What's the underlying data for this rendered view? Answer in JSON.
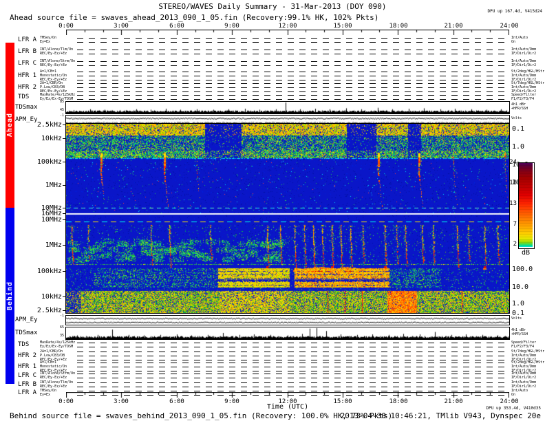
{
  "header": {
    "title": "STEREO/WAVES Daily Summary - 31-Mar-2013 (DOY 090)",
    "ahead_source": "Ahead source file = swaves_ahead_2013_090_1_05.fin (Recovery:99.1% HK, 102% Pkts)",
    "dpu_status": "DPU up 167.4d, V415d24"
  },
  "footer": {
    "behind_source": "Behind source file = swaves_behind_2013_090_1_05.fin (Recovery: 100.0% HK, 73% Pkts)",
    "generated": "2013-04-30 10:46:21, TMlib V943, Dynspec 20e",
    "dpu_status": "DPU up 353.4d, V410d35"
  },
  "spacecraft_bars": {
    "ahead": {
      "label": "Ahead",
      "color": "#ff0000"
    },
    "behind": {
      "label": "Behind",
      "color": "#0000ee"
    }
  },
  "time_axis": {
    "labels": [
      "0:00",
      "3:00",
      "6:00",
      "9:00",
      "12:00",
      "15:00",
      "18:00",
      "21:00",
      "24:00"
    ],
    "title": "Time (UTC)"
  },
  "receivers_ahead": [
    {
      "label": "LFR A",
      "left_note": "TMSey/On\nEy=Ex",
      "right_note": "Int/Auto\nOn"
    },
    {
      "label": "LFR B",
      "left_note": "INT/Alone/Tlm/On\nREC/Ey-Ez/+Ez",
      "right_note": "Int/Auto/Dmm\nIF/Dir1/Dir2"
    },
    {
      "label": "LFR C",
      "left_note": "INT/Alone/Strm/On\nREC/Ey-Ez/+Ez",
      "right_note": "Int/Auto/Dmm\nIF/Dir1/Dir2"
    },
    {
      "label": "HFR 1",
      "left_note": "A=1/CB=1\nMonostatic/On\nREC/Ex-Ey/+Ez",
      "right_note": "St/2deg/HGL/HStr\nInt/Auto/Dmm\nIF/Dir1/Dir2"
    },
    {
      "label": "HFR 2",
      "left_note": "2A=1/CBR/On\nP.Low/CB3/DB\nREC/Ex-Ey/+Ez",
      "right_note": "St/7deg/HGL/HStr\nInt/Auto/Dmm\nIF/Dir1/Dir2"
    },
    {
      "label": "TDS",
      "left_note": "MaxRate/4s/125kHz\nEy/Ez/Ex-Ey/TDSM",
      "right_note": "Speed/Filter\nF1/F2/F3/F4"
    }
  ],
  "receivers_behind": [
    {
      "label": "TDS",
      "left_note": "MaxRate/4s/125kHz\nEy/Ez/Ex-Ey/TDSM",
      "right_note": "Speed/Filter\nF1/F2/F3/F4"
    },
    {
      "label": "HFR 2",
      "left_note": "2A=1/CBR/On\nP.Low/CB3/DB\nREC/Ex-Ey/+Ez",
      "right_note": "St/7deg/HGL/HStr\nInt/Auto/Dmm\nIF/Dir1/Dir2"
    },
    {
      "label": "HFR 1",
      "left_note": "A=1/CB=1\nMonostatic/On\nREC/Ex-Ey/+Ez",
      "right_note": "St/2deg/HGL/HStr\nInt/Auto/Dmm\nIF/Dir1/Dir2"
    },
    {
      "label": "LFR C",
      "left_note": "INT/Alone/Strm/On\nREC/Ey-Ez/+Ez",
      "right_note": "Int/Auto/Dmm\nIF/Dir1/Dir2"
    },
    {
      "label": "LFR B",
      "left_note": "INT/Alone/Tlm/On\nREC/Ey-Ez/+Ez",
      "right_note": "Int/Auto/Dmm\nIF/Dir1/Dir2"
    },
    {
      "label": "LFR A",
      "left_note": "TMSey/On\nEy=Ex",
      "right_note": "Int/Auto\nOn"
    }
  ],
  "tdsmax": {
    "label": "TDSmax",
    "ahead_ticks": [
      "85",
      "45"
    ],
    "behind_ticks": [
      "65",
      "35"
    ],
    "right_note": "4h1 dBr\n+HFR/SSH"
  },
  "apm": {
    "label": "APM_Ey",
    "tick": "-1",
    "right_note": "Volts"
  },
  "freq_axis": {
    "ahead": [
      "2.5kHz",
      "10kHz",
      "100kHz",
      "1MHz",
      "10MHz"
    ],
    "junction": "16MHz",
    "behind": [
      "10MHz",
      "1MHz",
      "100kHz",
      "10kHz",
      "2.5kHz"
    ],
    "right_ahead": [
      "0.1",
      "1.0",
      "10.0",
      "100.0"
    ],
    "right_behind": [
      "100.0",
      "10.0",
      "1.0",
      "0.1"
    ]
  },
  "colorbar": {
    "ticks": [
      "24",
      "18",
      "13",
      "7",
      "2"
    ],
    "label": "dB"
  },
  "chart_data": {
    "figure_title": "STEREO/WAVES Daily Summary - 31-Mar-2013 (DOY 090)",
    "x_axis": {
      "label": "Time (UTC)",
      "range_hours": [
        0,
        24
      ],
      "major_tick_hours": 3,
      "minor_tick_hours": 1
    },
    "colorbar": {
      "label": "dB",
      "ticks": [
        2,
        7,
        13,
        18,
        24
      ],
      "range": [
        2,
        24
      ]
    },
    "panels": [
      {
        "name": "ahead_spectrogram",
        "type": "heatmap",
        "spacecraft": "STEREO Ahead",
        "y_ticks": [
          "2.5kHz",
          "10kHz",
          "100kHz",
          "1MHz",
          "10MHz"
        ],
        "y_range": "2.5 kHz (top) to 16 MHz (bottom), log scale",
        "right_ticks": [
          0.1,
          1.0,
          10.0,
          100.0
        ],
        "quiet_gaps_hours": [
          [
            7.5,
            9.5
          ],
          [
            15.2,
            16.8
          ],
          [
            18.5,
            19.2
          ]
        ],
        "type_iii_bursts": [
          {
            "t": 1.9,
            "s": 1
          },
          {
            "t": 5.35,
            "s": 1
          },
          {
            "t": 7.1,
            "s": 0.35
          },
          {
            "t": 16.95,
            "s": 1
          },
          {
            "t": 19.15,
            "s": 0.95
          },
          {
            "t": 21.0,
            "s": 0.5
          },
          {
            "t": 23.8,
            "s": 0.55
          }
        ],
        "description": "Continuous green/yellow emission 2.5-100 kHz with quiet gaps; type III radio bursts drifting from 16 MHz to ~100 kHz"
      },
      {
        "name": "behind_spectrogram",
        "type": "heatmap",
        "spacecraft": "STEREO Behind",
        "y_ticks": [
          "10MHz",
          "1MHz",
          "100kHz",
          "10kHz",
          "2.5kHz"
        ],
        "y_range": "16 MHz (top) to 2.5 kHz (bottom), log scale",
        "right_ticks": [
          100.0,
          10.0,
          1.0,
          0.1
        ],
        "type_iii_bursts": [
          {
            "t": 0.3,
            "s": 0.5
          },
          {
            "t": 1.2,
            "s": 0.4
          },
          {
            "t": 4.6,
            "s": 0.6
          },
          {
            "t": 5.6,
            "s": 0.7
          },
          {
            "t": 7.8,
            "s": 0.3
          },
          {
            "t": 10.9,
            "s": 0.8
          },
          {
            "t": 11.6,
            "s": 0.6
          },
          {
            "t": 12.4,
            "s": 0.9
          },
          {
            "t": 12.9,
            "s": 0.7
          },
          {
            "t": 13.4,
            "s": 1
          },
          {
            "t": 13.9,
            "s": 0.9
          },
          {
            "t": 14.4,
            "s": 0.8
          },
          {
            "t": 14.9,
            "s": 1
          },
          {
            "t": 15.4,
            "s": 0.7
          },
          {
            "t": 16.1,
            "s": 0.6
          },
          {
            "t": 17.3,
            "s": 0.8
          },
          {
            "t": 17.9,
            "s": 0.5
          },
          {
            "t": 18.4,
            "s": 0.7
          },
          {
            "t": 19.3,
            "s": 0.5
          },
          {
            "t": 19.9,
            "s": 0.6
          },
          {
            "t": 21.2,
            "s": 0.7
          },
          {
            "t": 21.8,
            "s": 0.4
          },
          {
            "t": 22.7,
            "s": 0.8
          },
          {
            "t": 23.4,
            "s": 0.6
          }
        ],
        "intense_patches": [
          {
            "t": 13.75,
            "len": 1.8
          },
          {
            "t": 15.25,
            "len": 1.3
          }
        ],
        "red_lines_hours": [
          14.2,
          15.1,
          16.05,
          21.45
        ],
        "bands": {
          "100kHz": "bright yellow 8:15-12:05, orange 12:20-17:30, green patches 1:30-8:15, faint after 20:20",
          "low_freq": "continuous 2.5-10 kHz speckle all day, bright orange column 17:25-19:00"
        }
      }
    ],
    "tdsmax_ahead": {
      "type": "line",
      "y_ticks": [
        45,
        85
      ],
      "spikes": [
        [
          0.4,
          0.2
        ],
        [
          1.3,
          0.3
        ],
        [
          2.1,
          0.25
        ],
        [
          2.9,
          0.2
        ],
        [
          3.8,
          0.3
        ],
        [
          4.6,
          0.25
        ],
        [
          5.4,
          0.35
        ],
        [
          6.2,
          0.25
        ],
        [
          7.1,
          0.3
        ],
        [
          8.0,
          0.25
        ],
        [
          8.8,
          0.3
        ],
        [
          9.7,
          0.35
        ],
        [
          10.5,
          0.25
        ],
        [
          11.4,
          0.3
        ],
        [
          11.9,
          1.0
        ],
        [
          12.7,
          0.3
        ],
        [
          13.5,
          0.35
        ],
        [
          14.3,
          0.3
        ],
        [
          15.2,
          0.4
        ],
        [
          16.0,
          0.3
        ],
        [
          16.9,
          0.45
        ],
        [
          17.7,
          0.3
        ],
        [
          18.6,
          0.35
        ],
        [
          19.4,
          0.4
        ],
        [
          20.3,
          0.3
        ],
        [
          21.1,
          0.35
        ],
        [
          22.0,
          0.3
        ],
        [
          22.8,
          0.25
        ],
        [
          23.6,
          0.3
        ]
      ]
    },
    "tdsmax_behind": {
      "type": "line",
      "y_ticks": [
        35,
        65
      ],
      "spikes": [
        [
          0.6,
          0.25
        ],
        [
          1.7,
          0.3
        ],
        [
          2.5,
          0.85
        ],
        [
          3.4,
          0.3
        ],
        [
          4.2,
          0.25
        ],
        [
          5.1,
          0.3
        ],
        [
          6.0,
          0.35
        ],
        [
          6.8,
          0.25
        ],
        [
          7.7,
          0.3
        ],
        [
          8.5,
          0.5
        ],
        [
          9.4,
          0.3
        ],
        [
          10.2,
          0.35
        ],
        [
          11.1,
          0.3
        ],
        [
          12.0,
          0.25
        ],
        [
          12.8,
          0.4
        ],
        [
          13.2,
          0.95
        ],
        [
          13.6,
          1.0
        ],
        [
          14.1,
          0.7
        ],
        [
          14.9,
          0.35
        ],
        [
          15.8,
          0.3
        ],
        [
          16.6,
          0.35
        ],
        [
          17.5,
          0.3
        ],
        [
          18.3,
          0.4
        ],
        [
          19.2,
          0.35
        ],
        [
          20.0,
          0.6
        ],
        [
          20.9,
          0.3
        ],
        [
          21.7,
          0.35
        ],
        [
          22.6,
          0.3
        ],
        [
          23.4,
          0.25
        ]
      ]
    },
    "apm_lines": {
      "ahead": [
        0.3,
        0.78
      ],
      "behind": [
        0.28,
        0.72
      ]
    }
  }
}
